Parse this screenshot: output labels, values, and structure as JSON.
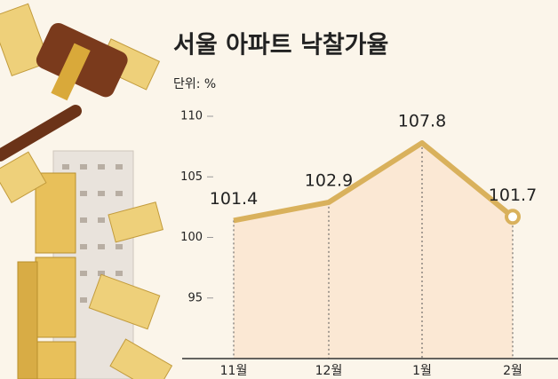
{
  "chart_data": {
    "type": "line",
    "title": "서울 아파트 낙찰가율",
    "subtitle": "단위: %",
    "categories": [
      "11월",
      "12월",
      "1월",
      "2월"
    ],
    "values": [
      101.4,
      102.9,
      107.8,
      101.7
    ],
    "color": "#d9b15c",
    "area_color": "#fbe8d4",
    "ylim": [
      90,
      112
    ],
    "yticks": [
      95,
      100,
      105,
      110
    ]
  }
}
